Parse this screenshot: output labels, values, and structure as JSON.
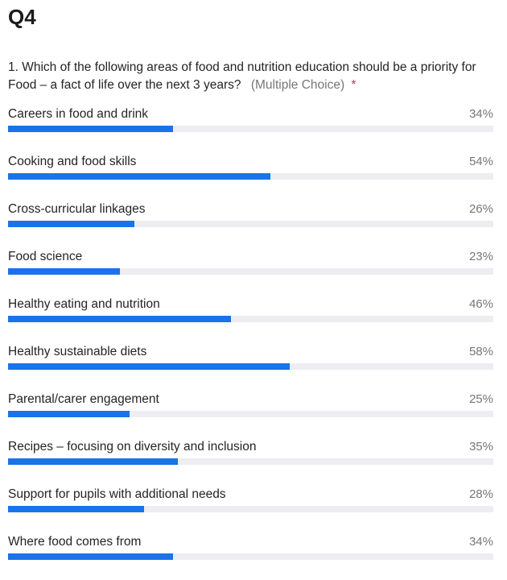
{
  "question_number": "Q4",
  "question": {
    "text": "1. Which of the following areas of food and nutrition education should be a priority for Food – a fact of life over the next 3 years?",
    "type_label": "(Multiple Choice)",
    "required_mark": "*"
  },
  "colors": {
    "bar_fill": "#1a73e8",
    "bar_track": "#ededf2",
    "required": "#c4314b"
  },
  "chart_data": {
    "type": "bar",
    "orientation": "horizontal",
    "categories": [
      "Careers in food and drink",
      "Cooking and food skills",
      "Cross-curricular linkages",
      "Food science",
      "Healthy eating and nutrition",
      "Healthy sustainable diets",
      "Parental/carer engagement",
      "Recipes – focusing on diversity and inclusion",
      "Support for pupils with additional needs",
      "Where food comes from"
    ],
    "values": [
      34,
      54,
      26,
      23,
      46,
      58,
      25,
      35,
      28,
      34
    ],
    "value_labels": [
      "34%",
      "54%",
      "26%",
      "23%",
      "46%",
      "58%",
      "25%",
      "35%",
      "28%",
      "34%"
    ],
    "xlim": [
      0,
      100
    ],
    "unit": "%"
  }
}
